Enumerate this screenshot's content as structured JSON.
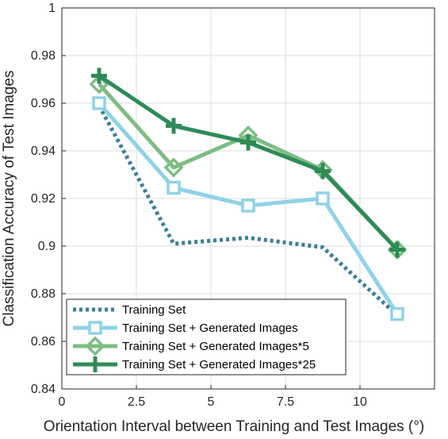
{
  "chart_data": {
    "type": "line",
    "title": "",
    "xlabel": "Orientation Interval between Training and Test Images (°)",
    "ylabel": "Classification Accuracy of Test Images",
    "xlim": [
      0,
      12.5
    ],
    "ylim": [
      0.84,
      1
    ],
    "xticks": [
      0,
      2.5,
      5,
      7.5,
      10
    ],
    "xtick_labels": [
      "0",
      "2.5",
      "5",
      "7.5",
      "10"
    ],
    "yticks": [
      0.84,
      0.86,
      0.88,
      0.9,
      0.92,
      0.94,
      0.96,
      0.98,
      1
    ],
    "ytick_labels": [
      "0.84",
      "0.86",
      "0.88",
      "0.9",
      "0.92",
      "0.94",
      "0.96",
      "0.98",
      "1"
    ],
    "grid": true,
    "legend_position": "bottom-left",
    "x": [
      1.25,
      3.75,
      6.25,
      8.75,
      11.25
    ],
    "series": [
      {
        "name": "Training Set",
        "values": [
          0.959,
          0.901,
          0.9035,
          0.8995,
          0.871
        ],
        "color": "#3a7f99",
        "line": "dotted",
        "marker": "none"
      },
      {
        "name": "Training Set + Generated Images",
        "values": [
          0.96,
          0.9245,
          0.917,
          0.92,
          0.8715
        ],
        "color": "#8fd2e6",
        "line": "solid",
        "marker": "square"
      },
      {
        "name": "Training Set + Generated Images*5",
        "values": [
          0.968,
          0.933,
          0.9465,
          0.932,
          0.8985
        ],
        "color": "#7dbd82",
        "line": "solid",
        "marker": "diamond"
      },
      {
        "name": "Training Set + Generated Images*25",
        "values": [
          0.9715,
          0.9505,
          0.9435,
          0.9315,
          0.8985
        ],
        "color": "#2e8b57",
        "line": "solid",
        "marker": "plus"
      }
    ]
  }
}
